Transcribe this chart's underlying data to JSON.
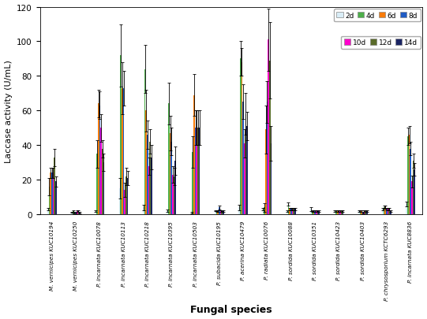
{
  "species": [
    "M. vernicipes KUC10194",
    "M. vernicipes KUC10250",
    "P. incarnata KUC10078",
    "P. incarnata KUC10113",
    "P. incarnata KUC10218",
    "P. incarnata KUC10395",
    "P. incarnata KUC10503",
    "P. subacida KUC10195",
    "P. acerina KUC10479",
    "P. radiata KUC10076",
    "P. sordida KUC10088",
    "P. sordida KUC10351",
    "P. sordida KUC10423",
    "P. sordida KUC10403",
    "P. chrysosporium KCTC6293",
    "P. incarnata KUC8836"
  ],
  "days": [
    "2d",
    "4d",
    "6d",
    "8d",
    "10d",
    "12d",
    "14d"
  ],
  "colors": [
    "#d9edf7",
    "#4daf4a",
    "#f97c0a",
    "#1f5bc4",
    "#ff00cc",
    "#5a6b2a",
    "#1a2463"
  ],
  "values": [
    [
      3,
      16,
      24,
      24,
      24,
      33,
      19
    ],
    [
      1,
      2,
      1,
      1,
      2,
      2,
      1
    ],
    [
      2,
      35,
      64,
      63,
      50,
      38,
      30
    ],
    [
      15,
      92,
      73,
      73,
      14,
      22,
      21
    ],
    [
      4,
      84,
      60,
      46,
      28,
      42,
      33
    ],
    [
      2,
      64,
      47,
      42,
      23,
      22,
      31
    ],
    [
      1,
      36,
      69,
      50,
      50,
      50,
      50
    ],
    [
      2,
      2,
      2,
      4,
      2,
      2,
      2
    ],
    [
      4,
      90,
      88,
      65,
      41,
      58,
      51
    ],
    [
      3,
      4,
      49,
      65,
      101,
      89,
      41
    ],
    [
      2,
      6,
      3,
      3,
      3,
      3,
      3
    ],
    [
      3,
      2,
      2,
      2,
      2,
      2,
      2
    ],
    [
      2,
      2,
      2,
      2,
      2,
      2,
      2
    ],
    [
      2,
      2,
      2,
      1,
      2,
      2,
      2
    ],
    [
      3,
      4,
      4,
      3,
      3,
      3,
      2
    ],
    [
      6,
      45,
      46,
      38,
      19,
      31,
      26
    ]
  ],
  "errors": [
    [
      0.5,
      5,
      3,
      3,
      3,
      5,
      3
    ],
    [
      0.3,
      0.5,
      0.5,
      0.5,
      0.5,
      0.5,
      0.5
    ],
    [
      0.5,
      8,
      8,
      8,
      8,
      5,
      5
    ],
    [
      6,
      18,
      15,
      10,
      4,
      5,
      4
    ],
    [
      1.5,
      14,
      12,
      8,
      5,
      7,
      7
    ],
    [
      0.8,
      12,
      10,
      8,
      5,
      5,
      8
    ],
    [
      0.5,
      9,
      12,
      10,
      10,
      10,
      10
    ],
    [
      0.3,
      0.5,
      0.5,
      1.2,
      0.5,
      0.5,
      0.5
    ],
    [
      1.5,
      10,
      8,
      10,
      8,
      12,
      8
    ],
    [
      0.8,
      2.5,
      14,
      12,
      18,
      22,
      10
    ],
    [
      0.5,
      1,
      0.5,
      0.5,
      0.5,
      0.5,
      0.5
    ],
    [
      1,
      0.5,
      0.5,
      0.5,
      0.5,
      0.5,
      0.5
    ],
    [
      0.5,
      0.5,
      0.5,
      0.5,
      0.5,
      0.5,
      0.5
    ],
    [
      0.5,
      0.5,
      0.5,
      0.5,
      0.5,
      0.5,
      0.5
    ],
    [
      0.8,
      0.8,
      0.8,
      0.8,
      0.8,
      0.8,
      0.5
    ],
    [
      1.5,
      5,
      5,
      4,
      3.5,
      4,
      3.5
    ]
  ],
  "ylabel": "Laccase activity (U/mL)",
  "xlabel": "Fungal species",
  "ylim": [
    0,
    120
  ],
  "yticks": [
    0,
    20,
    40,
    60,
    80,
    100,
    120
  ],
  "legend_ncol_row1": 4,
  "bar_width": 0.055,
  "figsize": [
    5.41,
    4.06
  ],
  "dpi": 100
}
